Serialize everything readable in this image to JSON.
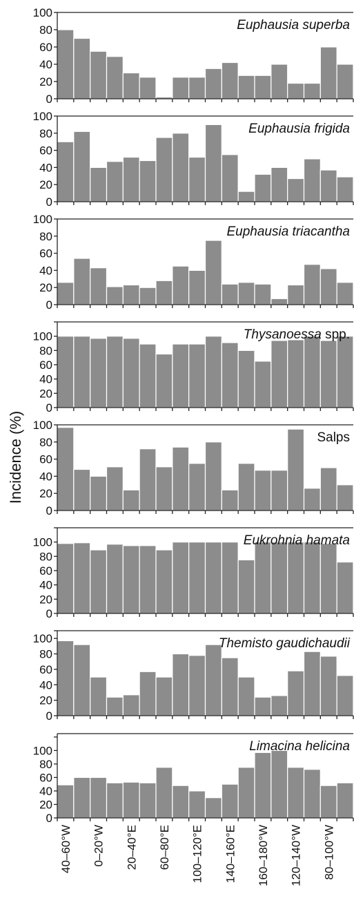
{
  "y_axis_title": "Incidence (%)",
  "colors": {
    "bar": "#8c8c8d",
    "bar_edge": "#ffffff",
    "axis": "#222222"
  },
  "chart_data": {
    "type": "bar",
    "layout": "8 vertically stacked panels sharing one x axis",
    "ylabel": "Incidence (%)",
    "xlabel": "",
    "x_tick_labels": [
      "40–60°W",
      "0–20°W",
      "20–40°E",
      "60–80°E",
      "100–120°E",
      "140–160°E",
      "160–180°W",
      "120–140°W",
      "80–100°W"
    ],
    "bars_per_panel": 18,
    "panels": [
      {
        "title": "Euphausia superba",
        "ylim": [
          0,
          100
        ],
        "y_ticks": [
          0,
          20,
          40,
          60,
          80,
          100
        ],
        "values": [
          80,
          70,
          55,
          49,
          30,
          25,
          2,
          25,
          25,
          35,
          42,
          27,
          27,
          40,
          18,
          18,
          60,
          40
        ]
      },
      {
        "title": "Euphausia frigida",
        "ylim": [
          0,
          100
        ],
        "y_ticks": [
          0,
          20,
          40,
          60,
          80,
          100
        ],
        "values": [
          70,
          82,
          40,
          47,
          52,
          48,
          75,
          80,
          52,
          90,
          55,
          12,
          32,
          40,
          27,
          50,
          37,
          29
        ]
      },
      {
        "title": "Euphausia triacantha",
        "ylim": [
          0,
          100
        ],
        "y_ticks": [
          0,
          20,
          40,
          60,
          80,
          100
        ],
        "values": [
          26,
          54,
          43,
          21,
          23,
          20,
          28,
          45,
          40,
          75,
          24,
          26,
          24,
          7,
          23,
          47,
          42,
          26
        ]
      },
      {
        "title_italic": "Thysanoessa",
        "title_upright": " spp.",
        "ylim": [
          0,
          120
        ],
        "y_ticks": [
          0,
          20,
          40,
          60,
          80,
          100
        ],
        "values": [
          100,
          100,
          97,
          100,
          97,
          89,
          75,
          89,
          89,
          100,
          91,
          80,
          65,
          94,
          95,
          100,
          94,
          100
        ]
      },
      {
        "title_upright": "Salps",
        "ylim": [
          0,
          100
        ],
        "y_ticks": [
          0,
          20,
          40,
          60,
          80,
          100
        ],
        "values": [
          97,
          48,
          40,
          51,
          24,
          72,
          51,
          74,
          55,
          80,
          24,
          55,
          47,
          47,
          95,
          26,
          50,
          30
        ]
      },
      {
        "title": "Eukrohnia hamata",
        "ylim": [
          0,
          120
        ],
        "y_ticks": [
          0,
          20,
          40,
          60,
          80,
          100
        ],
        "values": [
          98,
          99,
          89,
          97,
          95,
          95,
          89,
          100,
          100,
          100,
          100,
          75,
          100,
          100,
          100,
          100,
          98,
          72
        ]
      },
      {
        "title": "Themisto gaudichaudii",
        "ylim": [
          0,
          110
        ],
        "y_ticks": [
          0,
          20,
          40,
          60,
          80,
          100
        ],
        "values": [
          97,
          92,
          50,
          24,
          27,
          57,
          50,
          80,
          78,
          92,
          75,
          50,
          24,
          26,
          58,
          83,
          77,
          52
        ]
      },
      {
        "title": "Limacina helicina",
        "ylim": [
          0,
          125
        ],
        "y_ticks": [
          0,
          20,
          40,
          60,
          80,
          100
        ],
        "values": [
          49,
          60,
          60,
          52,
          53,
          52,
          75,
          48,
          40,
          30,
          50,
          75,
          97,
          100,
          75,
          72,
          48,
          52
        ]
      }
    ]
  }
}
